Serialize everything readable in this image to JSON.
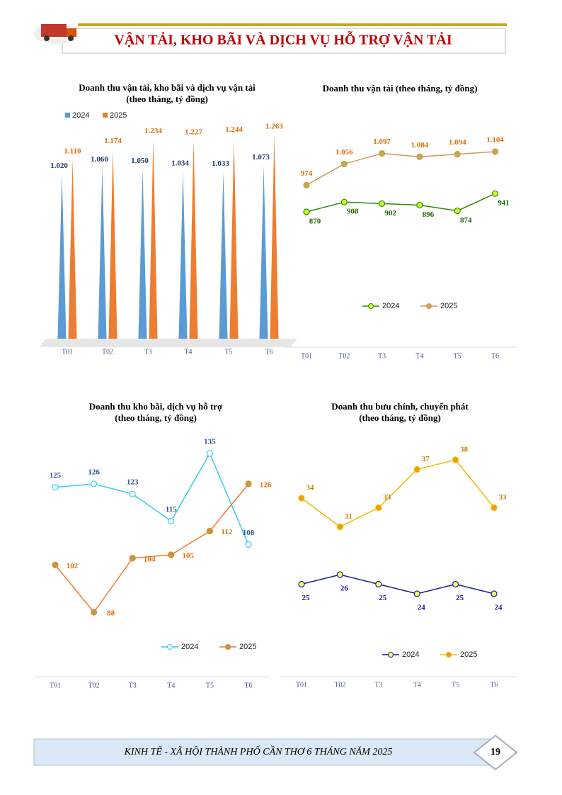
{
  "header": {
    "title": "VẬN TẢI, KHO BÃI VÀ DỊCH VỤ HỖ TRỢ VẬN TẢI"
  },
  "chart_data": [
    {
      "type": "bar",
      "title": "Doanh thu vận tải, kho bãi và dịch vụ vận tải",
      "subtitle": "(theo tháng, tỷ đồng)",
      "legend": "top",
      "categories": [
        "T01",
        "T02",
        "T3",
        "T4",
        "T5",
        "T6"
      ],
      "series": [
        {
          "name": "2024",
          "color": "#5b9bd5",
          "label_color": "#1f3864",
          "values": [
            1020,
            1060,
            1050,
            1034,
            1033,
            1073
          ],
          "value_labels": [
            "1.020",
            "1.060",
            "1.050",
            "1.034",
            "1.033",
            "1.073"
          ]
        },
        {
          "name": "2025",
          "color": "#ed7d31",
          "label_color": "#e46c0a",
          "values": [
            1110,
            1174,
            1234,
            1227,
            1244,
            1263
          ],
          "value_labels": [
            "1.110",
            "1.174",
            "1.234",
            "1.227",
            "1.244",
            "1.263"
          ]
        }
      ]
    },
    {
      "type": "line",
      "title": "Doanh thu vận tải (theo tháng, tỷ đồng)",
      "legend": "bottom",
      "categories": [
        "T01",
        "T02",
        "T3",
        "T4",
        "T5",
        "T6"
      ],
      "series": [
        {
          "name": "2024",
          "color": "#2e8b00",
          "marker_color": "#ccff33",
          "label_color": "#1e6b00",
          "values": [
            870,
            908,
            902,
            896,
            874,
            941
          ]
        },
        {
          "name": "2025",
          "color": "#c99a5a",
          "marker_color": "#c9a84c",
          "label_color": "#e46c0a",
          "values": [
            974,
            1056,
            1097,
            1084,
            1094,
            1104
          ],
          "value_labels": [
            "974",
            "1.056",
            "1.097",
            "1.084",
            "1.094",
            "1.104"
          ]
        }
      ]
    },
    {
      "type": "line",
      "title": "Doanh thu kho bãi, dịch vụ hỗ trợ",
      "subtitle": "(theo tháng, tỷ đồng)",
      "legend": "bottom",
      "categories": [
        "T01",
        "T02",
        "T3",
        "T4",
        "T5",
        "T6"
      ],
      "series": [
        {
          "name": "2024",
          "color": "#33ccee",
          "marker_color": "#ffffff",
          "label_color": "#2f4f8f",
          "values": [
            125,
            126,
            123,
            115,
            135,
            108
          ]
        },
        {
          "name": "2025",
          "color": "#ed7d31",
          "marker_color": "#b8a040",
          "label_color": "#e46c0a",
          "values": [
            102,
            88,
            104,
            105,
            112,
            126
          ]
        }
      ]
    },
    {
      "type": "line",
      "title": "Doanh thu bưu chính, chuyển phát",
      "subtitle": "(theo tháng, tỷ đồng)",
      "legend": "bottom",
      "categories": [
        "T01",
        "T02",
        "T3",
        "T4",
        "T5",
        "T6"
      ],
      "series": [
        {
          "name": "2024",
          "color": "#1a1aa0",
          "marker_color": "#ffff66",
          "label_color": "#1a1aa0",
          "values": [
            25,
            26,
            25,
            24,
            25,
            24
          ]
        },
        {
          "name": "2025",
          "color": "#f5b800",
          "marker_color": "#f59c00",
          "label_color": "#b8860b",
          "values": [
            34,
            31,
            33,
            37,
            38,
            33
          ]
        }
      ]
    }
  ],
  "footer": {
    "text": "KINH TẾ - XÃ HỘI THÀNH PHỐ CẦN THƠ 6 THÁNG NĂM 2025",
    "page": 19
  }
}
